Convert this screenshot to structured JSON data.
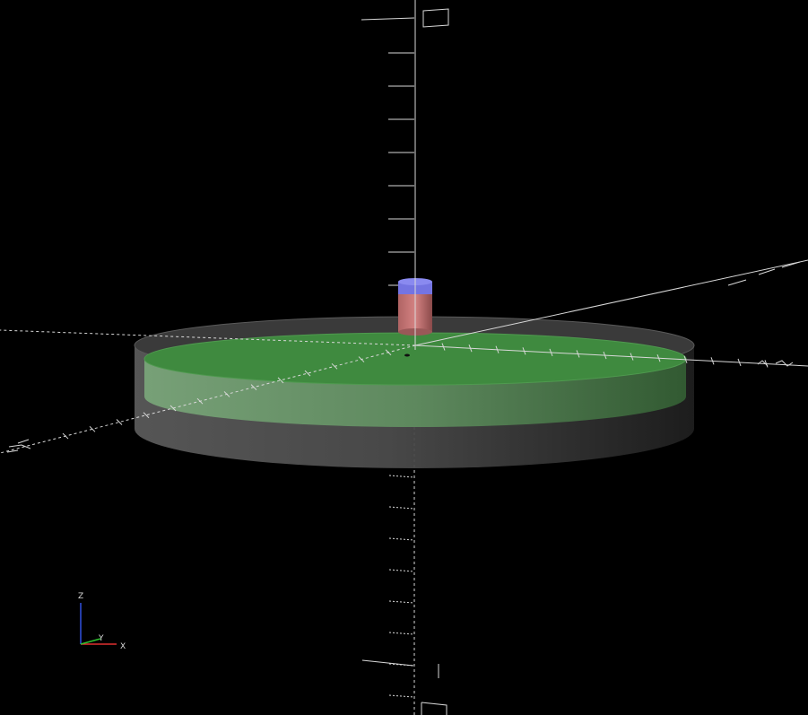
{
  "viewport": {
    "background": "#000000",
    "render_mode": "preview"
  },
  "colors": {
    "axis": "#dcdcdc",
    "plate_dark_body": "#4a4a4a",
    "plate_green": "#3e8a3e",
    "cylinder_top": "#7070e0",
    "cylinder_body": "#c47070",
    "gizmo_x": "#e03030",
    "gizmo_y": "#30c030",
    "gizmo_z": "#3050e0"
  },
  "axes_gizmo": {
    "x_label": "X",
    "y_label": "Y",
    "z_label": "Z"
  },
  "objects": [
    {
      "name": "outer-disc",
      "color": "grey-transparent"
    },
    {
      "name": "green-disc",
      "color": "green-transparent"
    },
    {
      "name": "small-cylinder",
      "color": "blue-red"
    }
  ]
}
